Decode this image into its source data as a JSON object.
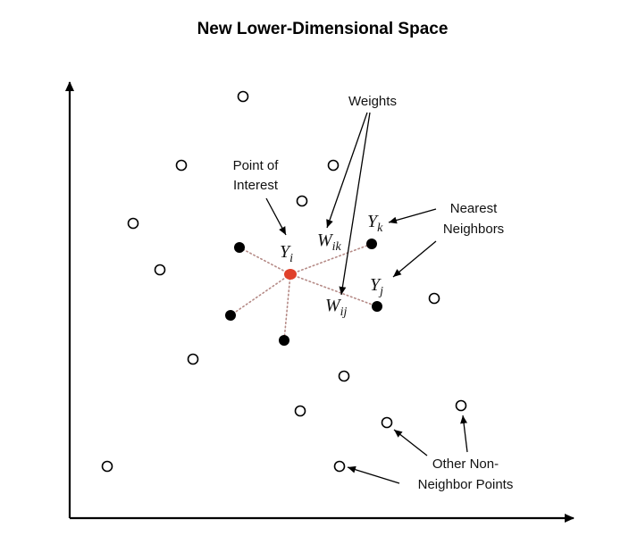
{
  "title": "New Lower-Dimensional Space",
  "colors": {
    "interest": "#e0402a",
    "neighbor": "#000000",
    "open": "#ffffff",
    "edge": "#b58a86"
  },
  "labels": {
    "weights": "Weights",
    "point_of_interest_line1": "Point of",
    "point_of_interest_line2": "Interest",
    "nearest_line1": "Nearest",
    "nearest_line2": "Neighbors",
    "other_line1": "Other Non-",
    "other_line2": "Neighbor Points"
  },
  "math": {
    "yi": {
      "main": "Y",
      "sub": "i"
    },
    "yk": {
      "main": "Y",
      "sub": "k"
    },
    "yj": {
      "main": "Y",
      "sub": "j"
    },
    "wik": {
      "main": "W",
      "sub": "ik"
    },
    "wij": {
      "main": "W",
      "sub": "ij"
    }
  }
}
